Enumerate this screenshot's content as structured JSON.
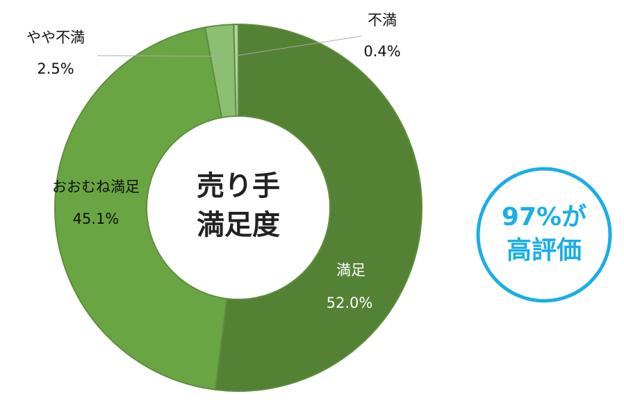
{
  "chart_data": {
    "type": "donut",
    "categories": [
      "満足",
      "おおむね満足",
      "やや不満",
      "不満"
    ],
    "values": [
      52.0,
      45.1,
      2.5,
      0.4
    ],
    "value_labels": [
      "52.0%",
      "45.1%",
      "2.5%",
      "0.4%"
    ],
    "colors": [
      "#548235",
      "#6aa543",
      "#8dbf73",
      "#b3d4a2"
    ],
    "center_text": [
      "売り手",
      "満足度"
    ],
    "annotation": [
      "97%が",
      "高評価"
    ]
  }
}
